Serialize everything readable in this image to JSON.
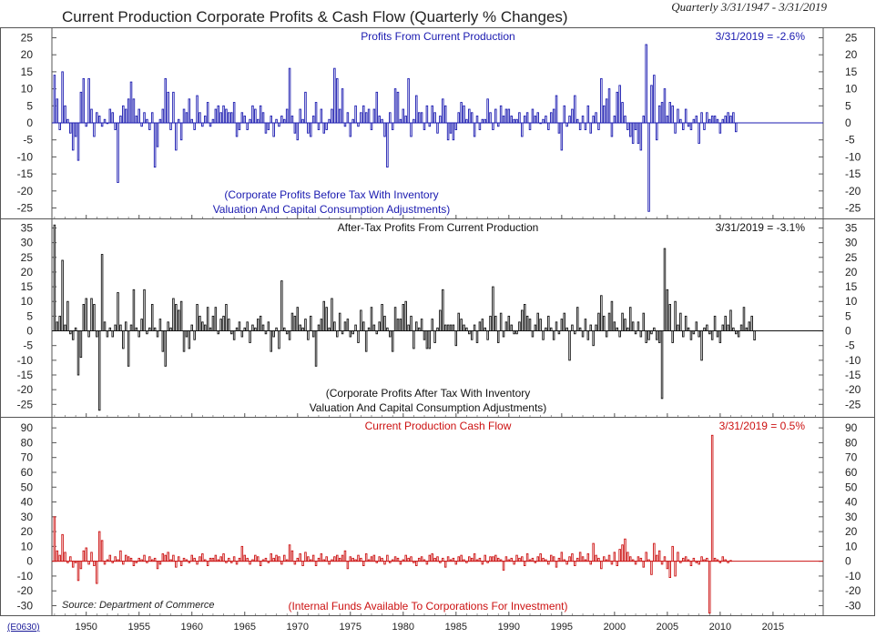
{
  "title": "Current Production Corporate Profits & Cash Flow (Quarterly % Changes)",
  "date_range": "Quarterly 3/31/1947 - 3/31/2019",
  "ref_code": "(E0630)",
  "source": "Source: Department of Commerce",
  "x_axis": {
    "ticks": [
      "1950",
      "1955",
      "1960",
      "1965",
      "1970",
      "1975",
      "1980",
      "1985",
      "1990",
      "1995",
      "2000",
      "2005",
      "2010",
      "2015"
    ]
  },
  "colors": {
    "panel1": "#1a1ab0",
    "panel2": "#111111",
    "panel3": "#cc1111",
    "frame": "#555555"
  },
  "chart_data": [
    {
      "type": "bar",
      "title": "Profits From Current Production",
      "latest_label": "3/31/2019 = -2.6%",
      "note_lines": [
        "(Corporate Profits Before Tax With Inventory",
        "Valuation And Capital Consumption Adjustments)"
      ],
      "ylim": [
        -27,
        27
      ],
      "yticks": [
        "25",
        "20",
        "15",
        "10",
        "5",
        "0",
        "-5",
        "-10",
        "-15",
        "-20",
        "-25"
      ],
      "x_start": 1947.0,
      "x_step": 0.25,
      "values": [
        14,
        7,
        -2,
        15,
        5,
        1,
        -3,
        -8,
        -4,
        -11,
        9,
        13,
        -1,
        13,
        4,
        -4,
        3,
        2,
        -1,
        1,
        0,
        4,
        3,
        -2,
        -17.5,
        2,
        5,
        4,
        7,
        12,
        7,
        2,
        4,
        -1,
        3,
        1,
        -2,
        3,
        -13,
        -7,
        1,
        4,
        13,
        9,
        -2,
        9,
        -8,
        1,
        -5,
        4,
        3,
        7,
        1,
        -2,
        8,
        3,
        -1,
        2,
        6,
        -1,
        1,
        4,
        5,
        3,
        5,
        4,
        3,
        3,
        6,
        -4,
        -2,
        3,
        2,
        -2,
        1,
        5,
        4,
        1,
        5,
        3,
        -3,
        -2,
        2,
        -4,
        1,
        -1,
        2,
        1,
        4,
        16,
        2,
        -3,
        -5,
        4,
        1,
        9,
        -3,
        -4,
        2,
        6,
        -2,
        4,
        -3,
        -2,
        1,
        4,
        16,
        13,
        4,
        10,
        -1,
        3,
        -4,
        1,
        5,
        -1,
        3,
        5,
        3,
        4,
        -2,
        4,
        9,
        2,
        1,
        -4,
        -13,
        3,
        -2,
        10,
        9,
        1,
        4,
        2,
        13,
        -4,
        1,
        8,
        3,
        3,
        -2,
        5,
        -1,
        5,
        3,
        -3,
        2,
        7,
        5,
        -5,
        -3,
        -5,
        -2,
        3,
        6,
        5,
        1,
        4,
        3,
        -4,
        2,
        -2,
        1,
        1,
        7,
        3,
        -2,
        4,
        -1,
        5,
        2,
        4,
        4,
        2,
        1,
        1,
        3,
        -4,
        2,
        3,
        -2,
        4,
        2,
        3,
        0,
        1,
        2,
        -2,
        3,
        4,
        8,
        -3,
        -8,
        5,
        -1,
        2,
        4,
        8,
        1,
        -2,
        2,
        -2,
        5,
        -3,
        2,
        3,
        -2,
        13,
        5,
        7,
        10,
        -4,
        2,
        9,
        11,
        6,
        2,
        -2,
        -4,
        -6,
        -2,
        -6,
        -8,
        2,
        23,
        -26,
        11,
        14,
        -5,
        5,
        6,
        10,
        2,
        6,
        5,
        -3,
        4,
        1,
        -2,
        4,
        -1,
        -2,
        1,
        2,
        -6,
        3,
        -2,
        3,
        1,
        2,
        2,
        1,
        -3,
        1,
        2,
        3,
        2,
        3,
        -2.6
      ]
    },
    {
      "type": "bar",
      "title": "After-Tax Profits From Current Production",
      "latest_label": "3/31/2019 = -3.1%",
      "note_lines": [
        "(Corporate Profits After Tax With Inventory",
        "Valuation And Capital Consumption Adjustments)"
      ],
      "ylim": [
        -28,
        37
      ],
      "yticks": [
        "35",
        "30",
        "25",
        "20",
        "15",
        "10",
        "5",
        "0",
        "-5",
        "-10",
        "-15",
        "-20",
        "-25"
      ],
      "x_start": 1947.0,
      "x_step": 0.25,
      "values": [
        36,
        3,
        5,
        24,
        2,
        10,
        -1,
        -3,
        1,
        -15,
        -9,
        9,
        11,
        -2,
        11,
        9,
        -2,
        -27,
        26,
        3,
        -2,
        1,
        -2,
        2,
        13,
        2,
        -6,
        3,
        -12,
        2,
        14,
        1,
        -2,
        4,
        14,
        -1,
        1,
        9,
        1,
        -2,
        4,
        -7,
        -12,
        3,
        1,
        11,
        9,
        7,
        10,
        -7,
        -2,
        -6,
        2,
        -3,
        9,
        5,
        3,
        2,
        8,
        1,
        5,
        8,
        -1,
        4,
        5,
        9,
        4,
        -1,
        -3,
        1,
        3,
        -2,
        1,
        3,
        -4,
        2,
        1,
        4,
        5,
        2,
        -1,
        3,
        -7,
        -2,
        1,
        -6,
        17,
        1,
        -1,
        -3,
        6,
        5,
        8,
        2,
        1,
        4,
        -3,
        5,
        -2,
        -12,
        2,
        4,
        10,
        8,
        1,
        11,
        3,
        -2,
        6,
        -1,
        3,
        4,
        -2,
        -1,
        2,
        -4,
        7,
        3,
        -7,
        1,
        8,
        2,
        -1,
        3,
        9,
        5,
        1,
        -2,
        -7,
        8,
        4,
        4,
        9,
        10,
        2,
        5,
        -6,
        3,
        1,
        4,
        -3,
        -6,
        -6,
        4,
        -4,
        1,
        7,
        14,
        2,
        2,
        2,
        2,
        -5,
        6,
        4,
        2,
        1,
        -1,
        -3,
        2,
        -4,
        3,
        4,
        1,
        -3,
        5,
        15,
        5,
        -4,
        6,
        -2,
        3,
        5,
        2,
        -1,
        -1,
        3,
        7,
        9,
        5,
        4,
        -2,
        2,
        6,
        4,
        -3,
        1,
        5,
        1,
        -3,
        3,
        -1,
        4,
        6,
        1,
        -10,
        2,
        -1,
        8,
        1,
        -2,
        4,
        -3,
        2,
        -5,
        2,
        6,
        12,
        5,
        -2,
        6,
        10,
        3,
        1,
        -2,
        6,
        4,
        1,
        8,
        3,
        -1,
        3,
        -2,
        6,
        -4,
        -3,
        -1,
        1,
        -3,
        -4,
        -23,
        28,
        14,
        9,
        -4,
        10,
        2,
        6,
        -2,
        5,
        1,
        -3,
        -1,
        3,
        -2,
        -10,
        1,
        2,
        -1,
        -3,
        5,
        -2,
        -4,
        2,
        5,
        2,
        7,
        1,
        -1,
        -2,
        2,
        8,
        1,
        3,
        5,
        -3.1
      ]
    },
    {
      "type": "bar",
      "title": "Current Production Cash Flow",
      "latest_label": "3/31/2019 = 0.5%",
      "note_lines": [
        "(Internal Funds Available To Corporations For Investment)"
      ],
      "ylim": [
        -34,
        95
      ],
      "yticks": [
        "90",
        "80",
        "70",
        "60",
        "50",
        "40",
        "30",
        "20",
        "10",
        "0",
        "-10",
        "-20",
        "-30"
      ],
      "x_start": 1947.0,
      "x_step": 0.25,
      "values": [
        30,
        7,
        4,
        18,
        6,
        -1,
        3,
        -4,
        -1,
        -13,
        -5,
        7,
        9,
        -2,
        6,
        -3,
        -15,
        20,
        14,
        -2,
        1,
        4,
        -1,
        3,
        1,
        7,
        -2,
        4,
        3,
        2,
        -3,
        -1,
        2,
        1,
        4,
        -1,
        3,
        1,
        2,
        -5,
        -2,
        5,
        4,
        6,
        1,
        4,
        -4,
        3,
        -3,
        2,
        1,
        -1,
        4,
        2,
        -2,
        3,
        5,
        1,
        -3,
        2,
        2,
        4,
        1,
        3,
        5,
        -1,
        2,
        -1,
        3,
        -2,
        2,
        10,
        4,
        2,
        -2,
        1,
        4,
        3,
        -3,
        1,
        2,
        -1,
        5,
        2,
        4,
        3,
        -2,
        4,
        1,
        11,
        7,
        -2,
        2,
        5,
        -3,
        6,
        3,
        1,
        4,
        -3,
        2,
        5,
        1,
        3,
        -2,
        1,
        3,
        4,
        2,
        4,
        7,
        -5,
        3,
        2,
        1,
        4,
        2,
        -3,
        5,
        1,
        3,
        4,
        -1,
        3,
        2,
        -2,
        4,
        -1,
        1,
        3,
        2,
        -2,
        1,
        4,
        2,
        3,
        -1,
        -3,
        2,
        3,
        1,
        -2,
        4,
        5,
        2,
        3,
        -1,
        2,
        -4,
        3,
        1,
        2,
        -2,
        3,
        4,
        1,
        -1,
        3,
        2,
        5,
        1,
        2,
        -2,
        4,
        -1,
        3,
        3,
        4,
        2,
        1,
        -6,
        3,
        1,
        2,
        -2,
        4,
        2,
        3,
        -3,
        5,
        1,
        2,
        -1,
        3,
        5,
        2,
        1,
        -2,
        4,
        3,
        -4,
        2,
        6,
        1,
        -2,
        3,
        5,
        -3,
        2,
        6,
        3,
        1,
        5,
        -2,
        12,
        4,
        2,
        -5,
        3,
        1,
        4,
        -2,
        6,
        -3,
        8,
        11,
        15,
        6,
        3,
        1,
        -2,
        3,
        2,
        -4,
        6,
        1,
        -9,
        12,
        4,
        7,
        -2,
        3,
        -5,
        -11,
        10,
        -10,
        6,
        -1,
        2,
        3,
        1,
        -3,
        2,
        -1,
        -2,
        3,
        1,
        2,
        -35,
        85,
        2,
        1,
        -1,
        3,
        1,
        -1,
        0.5
      ]
    }
  ]
}
